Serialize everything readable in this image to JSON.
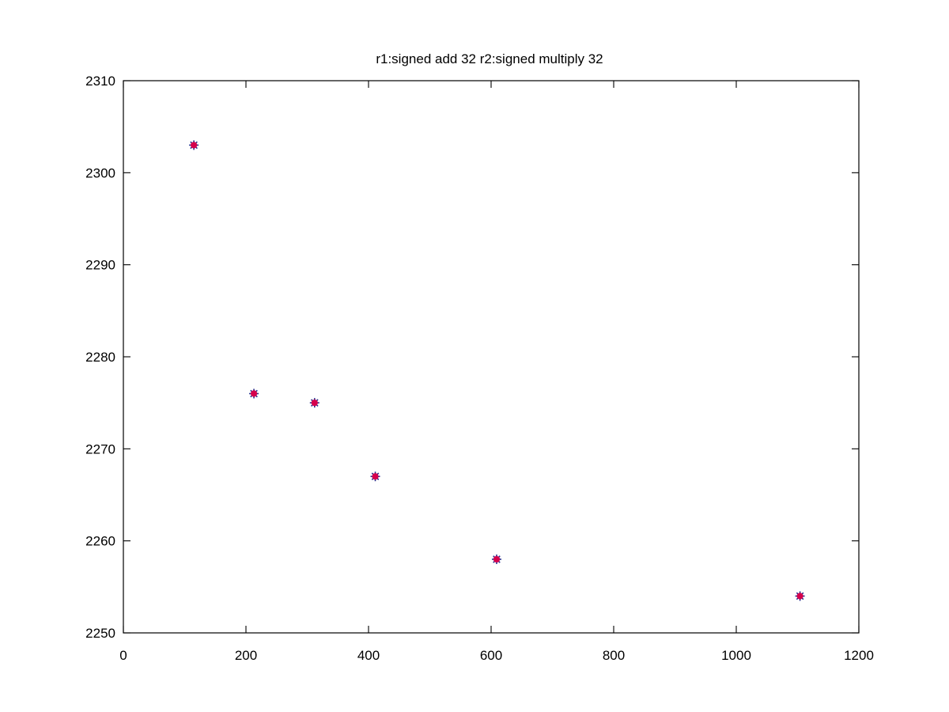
{
  "chart_data": {
    "type": "scatter",
    "title": "r1:signed add 32 r2:signed multiply 32",
    "xlabel": "",
    "ylabel": "",
    "xlim": [
      0,
      1200
    ],
    "ylim": [
      2250,
      2310
    ],
    "x_ticks": [
      0,
      200,
      400,
      600,
      800,
      1000,
      1200
    ],
    "y_ticks": [
      2250,
      2260,
      2270,
      2280,
      2290,
      2300,
      2310
    ],
    "x_tick_labels": [
      "0",
      "200",
      "400",
      "600",
      "800",
      "1000",
      "1200"
    ],
    "y_tick_labels": [
      "2250",
      "2260",
      "2270",
      "2280",
      "2290",
      "2300",
      "2310"
    ],
    "grid": false,
    "legend": "none",
    "series": [
      {
        "color": "#2a2a8a",
        "marker": "star",
        "x": [
          115,
          213,
          312,
          411,
          609,
          1104
        ],
        "y": [
          2303,
          2276,
          2275,
          2267,
          2258,
          2254
        ]
      },
      {
        "color": "#d6004c",
        "marker": "circle",
        "x": [
          115,
          213,
          312,
          411,
          609,
          1104
        ],
        "y": [
          2303,
          2276,
          2275,
          2267,
          2258,
          2254
        ]
      }
    ]
  }
}
